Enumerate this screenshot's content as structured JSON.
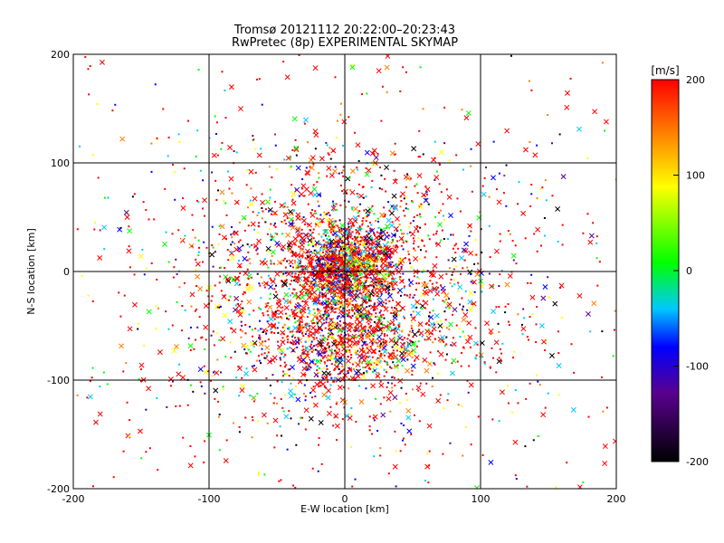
{
  "chart_data": {
    "type": "scatter",
    "title": "Tromsø 20121112 20:22:00–20:23:43",
    "subtitle": "RwPretec (8p) EXPERIMENTAL SKYMAP",
    "xlabel": "E-W location [km]",
    "ylabel": "N-S location [km]",
    "xlim": [
      -200,
      200
    ],
    "ylim": [
      -200,
      200
    ],
    "xticks": [
      "-200",
      "-100",
      "0",
      "100",
      "200"
    ],
    "yticks": [
      "-200",
      "-100",
      "0",
      "100",
      "200"
    ],
    "grid": true,
    "markers": [
      "small dot (short pulse)",
      "x (long pulse)"
    ],
    "points_note": "several thousand scattered echo positions concentrated near the origin, colour-coded by Doppler velocity",
    "colorbar": {
      "label": "[m/s]",
      "range": [
        -200,
        200
      ],
      "ticks": [
        "200",
        "100",
        "0",
        "-100",
        "-200"
      ],
      "colormap": [
        "#000000",
        "#5a0090",
        "#0000ff",
        "#00c8ff",
        "#00ff00",
        "#ffff00",
        "#ff8000",
        "#ff0000"
      ]
    }
  }
}
